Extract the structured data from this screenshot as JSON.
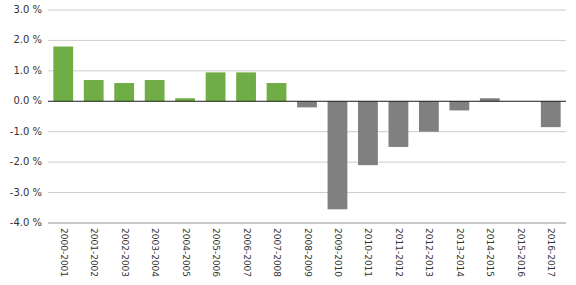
{
  "chart_data": {
    "type": "bar",
    "categories": [
      "2000-2001",
      "2001-2002",
      "2002-2003",
      "2003-2004",
      "2004-2005",
      "2005-2006",
      "2006-2007",
      "2007-2008",
      "2008-2009",
      "2009-2010",
      "2010-2011",
      "2011-2012",
      "2012-2013",
      "2013-2014",
      "2014-2015",
      "2015-2016",
      "2016-2017"
    ],
    "values": [
      1.8,
      0.7,
      0.6,
      0.7,
      0.1,
      0.95,
      0.95,
      0.6,
      -0.2,
      -3.55,
      -2.1,
      -1.5,
      -1.0,
      -0.3,
      0.1,
      0.0,
      -0.85
    ],
    "colors": [
      "#70ad47",
      "#70ad47",
      "#70ad47",
      "#70ad47",
      "#70ad47",
      "#70ad47",
      "#70ad47",
      "#70ad47",
      "#808080",
      "#808080",
      "#808080",
      "#808080",
      "#808080",
      "#808080",
      "#808080",
      "#808080",
      "#808080"
    ],
    "ylim": [
      -4.0,
      3.0
    ],
    "yticks": [
      {
        "value": -4.0,
        "label": "-4.0 %"
      },
      {
        "value": -3.0,
        "label": "-3.0 %"
      },
      {
        "value": -2.0,
        "label": "-2.0 %"
      },
      {
        "value": -1.0,
        "label": "-1.0 %"
      },
      {
        "value": 0.0,
        "label": "0.0 %"
      },
      {
        "value": 1.0,
        "label": "1.0 %"
      },
      {
        "value": 2.0,
        "label": "2.0 %"
      },
      {
        "value": 3.0,
        "label": "3.0 %"
      }
    ],
    "grid": true
  }
}
